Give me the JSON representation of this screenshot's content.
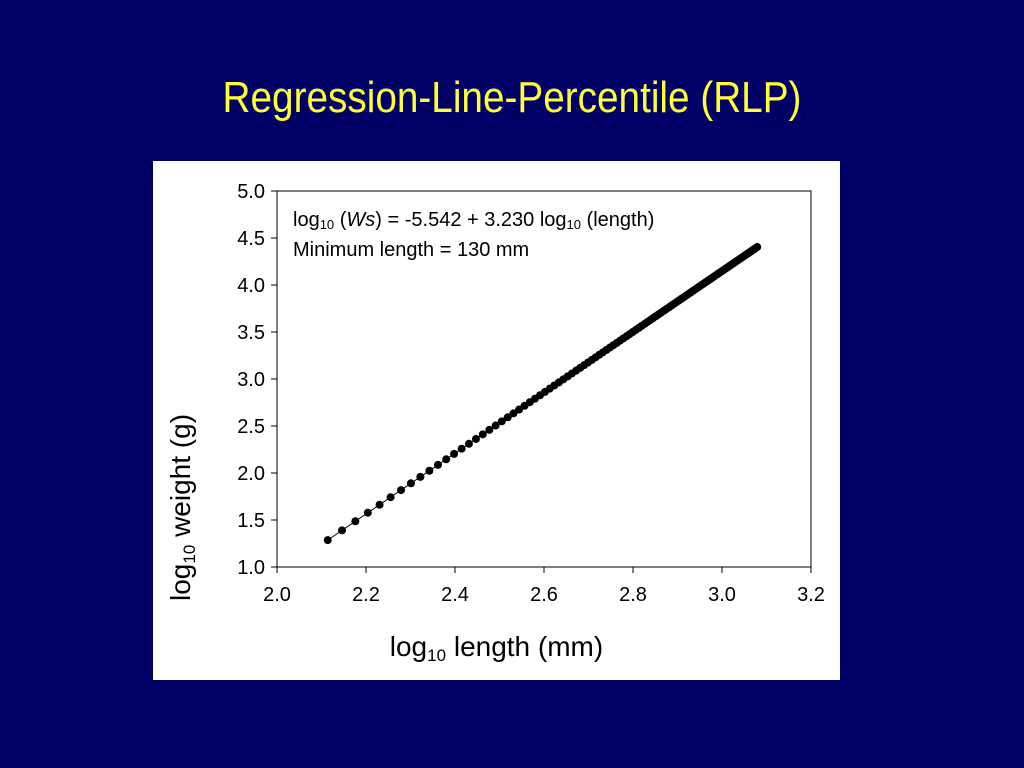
{
  "slide": {
    "title": "Regression-Line-Percentile (RLP)"
  },
  "annotation": {
    "line1_log": "log",
    "line1_sub": "10",
    "line1_open": " (",
    "line1_ws": "Ws",
    "line1_mid": ") = -5.542 + 3.230 log",
    "line1_sub2": "10",
    "line1_end": " (length)",
    "line2": "Minimum length = 130 mm"
  },
  "colors": {
    "background": "#000066",
    "title": "#ffff33",
    "panel": "#ffffff",
    "points": "#000000"
  },
  "chart_data": {
    "type": "scatter",
    "xlabel_main": "log",
    "xlabel_sub": "10",
    "xlabel_rest": " length (mm)",
    "ylabel_main": "log",
    "ylabel_sub": "10",
    "ylabel_rest": " weight (g)",
    "xlim": [
      2.0,
      3.2
    ],
    "ylim": [
      1.0,
      5.0
    ],
    "x_ticks": [
      "2.0",
      "2.2",
      "2.4",
      "2.6",
      "2.8",
      "3.0",
      "3.2"
    ],
    "y_ticks": [
      "5.0",
      "4.5",
      "4.0",
      "3.5",
      "3.0",
      "2.5",
      "2.0",
      "1.5",
      "1.0"
    ],
    "grid": false,
    "regression": {
      "intercept": -5.542,
      "slope": 3.23
    },
    "length_range_mm": [
      130,
      1200
    ],
    "length_step_mm": 10
  }
}
